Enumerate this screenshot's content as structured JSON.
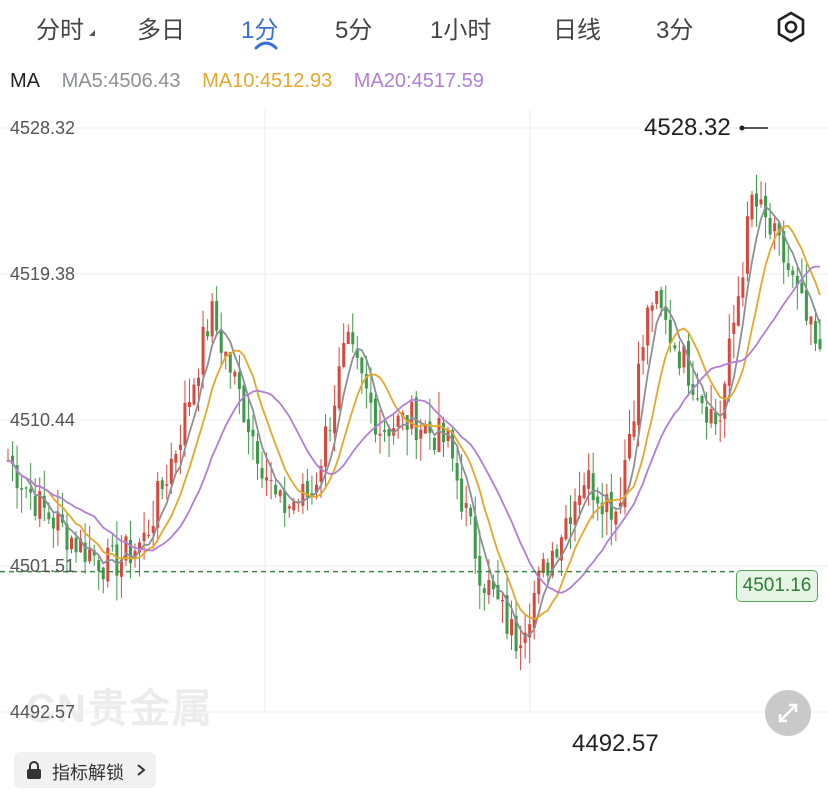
{
  "tabs": [
    {
      "label": "分时",
      "active": false
    },
    {
      "label": "多日",
      "active": false
    },
    {
      "label": "1分",
      "active": true
    },
    {
      "label": "5分",
      "active": false
    },
    {
      "label": "1小时",
      "active": false
    },
    {
      "label": "日线",
      "active": false
    },
    {
      "label": "3分",
      "active": false
    }
  ],
  "settings_icon": "hexagon-gear-icon",
  "ma_legend": {
    "title": "MA",
    "ma5": "MA5:4506.43",
    "ma10": "MA10:4512.93",
    "ma20": "MA20:4517.59"
  },
  "colors": {
    "up": "#d9473d",
    "down": "#3c9a48",
    "ma5": "#8c9096",
    "ma10": "#e6a72a",
    "ma20": "#b07fd6",
    "grid": "#eeeeee",
    "price_line": "#3c8a44",
    "active_tab": "#3b6fd9"
  },
  "labels": {
    "high": "4528.32",
    "low": "4492.57",
    "current_price": "4501.16",
    "watermark": "CN贵金属",
    "unlock": "指标解锁",
    "unlock_icon": "lock-icon",
    "expand_icon": "expand-arrows-icon"
  },
  "chart_data": {
    "type": "candlestick",
    "y_ticks": [
      "4528.32",
      "4519.38",
      "4510.44",
      "4501.51",
      "4492.57"
    ],
    "ylim": [
      4492.57,
      4528.32
    ],
    "current_price": 4501.16,
    "high": 4528.32,
    "low": 4492.57,
    "ohlc_anchor_closes": [
      4508,
      4505,
      4503,
      4501.5,
      4503,
      4509,
      4517,
      4511,
      4505,
      4506,
      4515,
      4510,
      4510.5,
      4509,
      4501,
      4497,
      4502,
      4507,
      4505,
      4518,
      4514,
      4510,
      4524,
      4520,
      4514
    ],
    "ma5_current": 4506.43,
    "ma10_current": 4512.93,
    "ma20_current": 4517.59
  }
}
